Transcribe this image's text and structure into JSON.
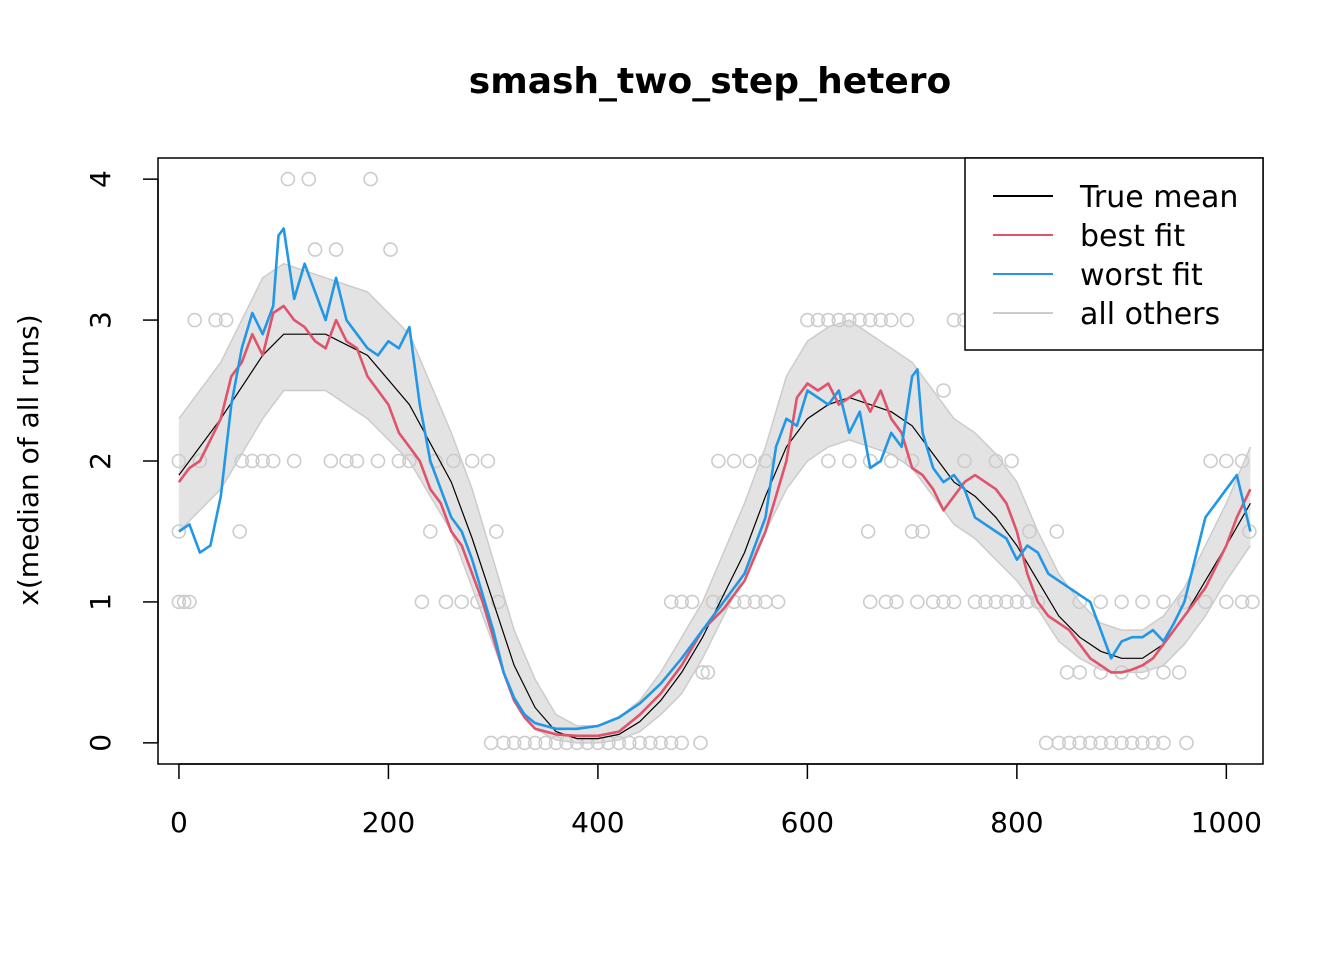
{
  "chart_data": {
    "type": "line",
    "title": "smash_two_step_hetero",
    "xlabel": "",
    "ylabel": "x(median of all runs)",
    "xlim": [
      -20,
      1035
    ],
    "ylim": [
      -0.15,
      4.15
    ],
    "x_ticks": [
      0,
      200,
      400,
      600,
      800,
      1000
    ],
    "y_ticks": [
      0,
      1,
      2,
      3,
      4
    ],
    "legend_position": "top-right",
    "legend": [
      {
        "label": "True mean",
        "color": "#000000"
      },
      {
        "label": "best fit",
        "color": "#DF536B"
      },
      {
        "label": "worst fit",
        "color": "#2297E6"
      },
      {
        "label": "all others",
        "color": "#CCCCCC"
      }
    ],
    "true_mean": {
      "color": "#000000",
      "x": [
        0,
        40,
        80,
        100,
        140,
        180,
        220,
        260,
        280,
        300,
        320,
        340,
        360,
        380,
        400,
        420,
        440,
        460,
        480,
        500,
        520,
        540,
        560,
        580,
        600,
        620,
        640,
        660,
        680,
        700,
        720,
        740,
        760,
        780,
        800,
        820,
        840,
        860,
        880,
        900,
        920,
        940,
        960,
        980,
        1000,
        1023
      ],
      "y": [
        1.9,
        2.3,
        2.75,
        2.9,
        2.9,
        2.75,
        2.4,
        1.85,
        1.45,
        1.0,
        0.55,
        0.25,
        0.08,
        0.03,
        0.03,
        0.06,
        0.15,
        0.3,
        0.5,
        0.75,
        1.05,
        1.35,
        1.75,
        2.1,
        2.3,
        2.4,
        2.45,
        2.4,
        2.35,
        2.25,
        2.05,
        1.85,
        1.75,
        1.6,
        1.4,
        1.15,
        0.9,
        0.75,
        0.65,
        0.6,
        0.6,
        0.7,
        0.9,
        1.15,
        1.4,
        1.7
      ]
    },
    "series": [
      {
        "name": "best fit",
        "color": "#DF536B",
        "x": [
          0,
          10,
          20,
          30,
          40,
          50,
          60,
          70,
          80,
          90,
          100,
          110,
          120,
          130,
          140,
          150,
          160,
          170,
          180,
          190,
          200,
          210,
          220,
          230,
          240,
          250,
          260,
          270,
          280,
          290,
          300,
          310,
          320,
          330,
          340,
          360,
          380,
          400,
          420,
          440,
          460,
          480,
          500,
          520,
          540,
          560,
          580,
          590,
          600,
          610,
          620,
          630,
          640,
          650,
          660,
          670,
          680,
          690,
          700,
          710,
          720,
          730,
          740,
          750,
          760,
          770,
          780,
          790,
          800,
          810,
          820,
          830,
          840,
          850,
          860,
          870,
          880,
          890,
          900,
          910,
          920,
          930,
          940,
          950,
          960,
          970,
          980,
          990,
          1000,
          1010,
          1023
        ],
        "y": [
          1.85,
          1.95,
          2.0,
          2.15,
          2.3,
          2.6,
          2.7,
          2.9,
          2.75,
          3.05,
          3.1,
          3.0,
          2.95,
          2.85,
          2.8,
          3.0,
          2.85,
          2.8,
          2.6,
          2.5,
          2.4,
          2.2,
          2.1,
          2.0,
          1.8,
          1.7,
          1.5,
          1.4,
          1.2,
          1.0,
          0.75,
          0.5,
          0.3,
          0.18,
          0.1,
          0.06,
          0.05,
          0.05,
          0.08,
          0.2,
          0.35,
          0.55,
          0.8,
          0.95,
          1.15,
          1.5,
          2.0,
          2.45,
          2.55,
          2.5,
          2.55,
          2.4,
          2.45,
          2.5,
          2.35,
          2.5,
          2.3,
          2.2,
          1.95,
          1.9,
          1.8,
          1.65,
          1.75,
          1.85,
          1.9,
          1.85,
          1.8,
          1.7,
          1.5,
          1.2,
          1.0,
          0.9,
          0.85,
          0.8,
          0.7,
          0.6,
          0.55,
          0.5,
          0.5,
          0.52,
          0.55,
          0.6,
          0.7,
          0.8,
          0.9,
          1.0,
          1.1,
          1.25,
          1.4,
          1.6,
          1.8
        ]
      },
      {
        "name": "worst fit",
        "color": "#2297E6",
        "x": [
          0,
          10,
          20,
          30,
          40,
          50,
          60,
          70,
          80,
          90,
          95,
          100,
          110,
          120,
          130,
          140,
          150,
          160,
          170,
          180,
          190,
          200,
          210,
          220,
          230,
          240,
          250,
          260,
          270,
          280,
          290,
          300,
          310,
          320,
          330,
          340,
          360,
          380,
          400,
          420,
          440,
          460,
          480,
          500,
          520,
          540,
          560,
          570,
          580,
          590,
          600,
          610,
          620,
          630,
          640,
          650,
          660,
          670,
          680,
          690,
          700,
          705,
          710,
          720,
          730,
          740,
          750,
          760,
          770,
          780,
          790,
          800,
          810,
          820,
          830,
          840,
          850,
          860,
          870,
          880,
          890,
          900,
          910,
          920,
          930,
          940,
          950,
          960,
          970,
          980,
          990,
          1000,
          1010,
          1023
        ],
        "y": [
          1.5,
          1.55,
          1.35,
          1.4,
          1.75,
          2.4,
          2.8,
          3.05,
          2.9,
          3.1,
          3.6,
          3.65,
          3.15,
          3.4,
          3.2,
          3.0,
          3.3,
          3.0,
          2.9,
          2.8,
          2.75,
          2.85,
          2.8,
          2.95,
          2.4,
          2.0,
          1.8,
          1.6,
          1.5,
          1.3,
          1.05,
          0.8,
          0.5,
          0.32,
          0.2,
          0.14,
          0.1,
          0.1,
          0.12,
          0.18,
          0.28,
          0.42,
          0.6,
          0.8,
          1.0,
          1.2,
          1.6,
          2.1,
          2.3,
          2.25,
          2.5,
          2.45,
          2.4,
          2.5,
          2.2,
          2.35,
          1.95,
          2.0,
          2.2,
          2.1,
          2.6,
          2.65,
          2.2,
          1.95,
          1.85,
          1.9,
          1.8,
          1.6,
          1.55,
          1.5,
          1.45,
          1.3,
          1.4,
          1.35,
          1.2,
          1.15,
          1.1,
          1.05,
          1.0,
          0.8,
          0.6,
          0.72,
          0.75,
          0.75,
          0.8,
          0.72,
          0.85,
          1.0,
          1.3,
          1.6,
          1.7,
          1.8,
          1.9,
          1.5
        ]
      }
    ],
    "all_others_band": {
      "color": "#CCCCCC",
      "x": [
        0,
        40,
        80,
        100,
        140,
        180,
        220,
        260,
        280,
        300,
        320,
        340,
        360,
        380,
        400,
        420,
        440,
        460,
        480,
        500,
        520,
        540,
        560,
        580,
        600,
        620,
        640,
        660,
        680,
        700,
        720,
        740,
        760,
        780,
        800,
        820,
        840,
        860,
        880,
        900,
        920,
        940,
        960,
        980,
        1000,
        1023
      ],
      "y_low": [
        1.5,
        1.8,
        2.3,
        2.5,
        2.5,
        2.3,
        2.0,
        1.5,
        1.1,
        0.7,
        0.3,
        0.1,
        0.02,
        0.0,
        0.0,
        0.02,
        0.08,
        0.2,
        0.35,
        0.6,
        0.9,
        1.2,
        1.5,
        1.8,
        2.0,
        2.1,
        2.15,
        2.1,
        2.05,
        1.95,
        1.75,
        1.55,
        1.45,
        1.3,
        1.15,
        0.95,
        0.72,
        0.6,
        0.52,
        0.5,
        0.5,
        0.55,
        0.7,
        0.9,
        1.15,
        1.4
      ],
      "y_high": [
        2.3,
        2.7,
        3.3,
        3.4,
        3.3,
        3.2,
        2.9,
        2.2,
        1.8,
        1.3,
        0.8,
        0.45,
        0.2,
        0.12,
        0.12,
        0.18,
        0.3,
        0.5,
        0.75,
        1.0,
        1.35,
        1.7,
        2.1,
        2.6,
        2.85,
        2.95,
        3.0,
        2.9,
        2.8,
        2.7,
        2.5,
        2.3,
        2.2,
        2.05,
        1.85,
        1.5,
        1.2,
        1.0,
        0.85,
        0.8,
        0.8,
        0.9,
        1.1,
        1.4,
        1.7,
        2.1
      ]
    },
    "all_others_points": [
      {
        "x": 0,
        "y": 2.0
      },
      {
        "x": 0,
        "y": 1.5
      },
      {
        "x": 0,
        "y": 1.0
      },
      {
        "x": 5,
        "y": 1.0
      },
      {
        "x": 10,
        "y": 1.0
      },
      {
        "x": 15,
        "y": 3.0
      },
      {
        "x": 20,
        "y": 2.0
      },
      {
        "x": 35,
        "y": 3.0
      },
      {
        "x": 45,
        "y": 3.0
      },
      {
        "x": 58,
        "y": 1.5
      },
      {
        "x": 60,
        "y": 2.0
      },
      {
        "x": 70,
        "y": 2.0
      },
      {
        "x": 80,
        "y": 2.0
      },
      {
        "x": 90,
        "y": 2.0
      },
      {
        "x": 104,
        "y": 4.0
      },
      {
        "x": 110,
        "y": 2.0
      },
      {
        "x": 124,
        "y": 4.0
      },
      {
        "x": 130,
        "y": 3.5
      },
      {
        "x": 145,
        "y": 2.0
      },
      {
        "x": 150,
        "y": 3.5
      },
      {
        "x": 160,
        "y": 2.0
      },
      {
        "x": 170,
        "y": 2.0
      },
      {
        "x": 183,
        "y": 4.0
      },
      {
        "x": 190,
        "y": 2.0
      },
      {
        "x": 202,
        "y": 3.5
      },
      {
        "x": 210,
        "y": 2.0
      },
      {
        "x": 220,
        "y": 2.0
      },
      {
        "x": 232,
        "y": 1.0
      },
      {
        "x": 240,
        "y": 1.5
      },
      {
        "x": 245,
        "y": 2.0
      },
      {
        "x": 255,
        "y": 1.0
      },
      {
        "x": 262,
        "y": 2.0
      },
      {
        "x": 270,
        "y": 1.0
      },
      {
        "x": 280,
        "y": 2.0
      },
      {
        "x": 285,
        "y": 1.0
      },
      {
        "x": 295,
        "y": 2.0
      },
      {
        "x": 303,
        "y": 1.5
      },
      {
        "x": 305,
        "y": 1.0
      },
      {
        "x": 298,
        "y": 0.0
      },
      {
        "x": 310,
        "y": 0.0
      },
      {
        "x": 320,
        "y": 0.0
      },
      {
        "x": 330,
        "y": 0.0
      },
      {
        "x": 340,
        "y": 0.0
      },
      {
        "x": 350,
        "y": 0.0
      },
      {
        "x": 360,
        "y": 0.0
      },
      {
        "x": 370,
        "y": 0.0
      },
      {
        "x": 380,
        "y": 0.0
      },
      {
        "x": 390,
        "y": 0.0
      },
      {
        "x": 400,
        "y": 0.0
      },
      {
        "x": 410,
        "y": 0.0
      },
      {
        "x": 420,
        "y": 0.0
      },
      {
        "x": 430,
        "y": 0.0
      },
      {
        "x": 440,
        "y": 0.0
      },
      {
        "x": 450,
        "y": 0.0
      },
      {
        "x": 460,
        "y": 0.0
      },
      {
        "x": 470,
        "y": 0.0
      },
      {
        "x": 480,
        "y": 0.0
      },
      {
        "x": 498,
        "y": 0.0
      },
      {
        "x": 470,
        "y": 1.0
      },
      {
        "x": 480,
        "y": 1.0
      },
      {
        "x": 490,
        "y": 1.0
      },
      {
        "x": 500,
        "y": 0.5
      },
      {
        "x": 505,
        "y": 0.5
      },
      {
        "x": 510,
        "y": 1.0
      },
      {
        "x": 520,
        "y": 1.0
      },
      {
        "x": 530,
        "y": 1.0
      },
      {
        "x": 540,
        "y": 1.0
      },
      {
        "x": 550,
        "y": 1.0
      },
      {
        "x": 560,
        "y": 1.0
      },
      {
        "x": 572,
        "y": 1.0
      },
      {
        "x": 515,
        "y": 2.0
      },
      {
        "x": 530,
        "y": 2.0
      },
      {
        "x": 545,
        "y": 2.0
      },
      {
        "x": 560,
        "y": 2.0
      },
      {
        "x": 600,
        "y": 3.0
      },
      {
        "x": 610,
        "y": 3.0
      },
      {
        "x": 620,
        "y": 3.0
      },
      {
        "x": 630,
        "y": 3.0
      },
      {
        "x": 640,
        "y": 3.0
      },
      {
        "x": 650,
        "y": 3.0
      },
      {
        "x": 660,
        "y": 3.0
      },
      {
        "x": 670,
        "y": 3.0
      },
      {
        "x": 680,
        "y": 3.0
      },
      {
        "x": 695,
        "y": 3.0
      },
      {
        "x": 620,
        "y": 2.0
      },
      {
        "x": 640,
        "y": 2.0
      },
      {
        "x": 660,
        "y": 2.0
      },
      {
        "x": 680,
        "y": 2.0
      },
      {
        "x": 700,
        "y": 2.0
      },
      {
        "x": 658,
        "y": 1.5
      },
      {
        "x": 660,
        "y": 1.0
      },
      {
        "x": 675,
        "y": 1.0
      },
      {
        "x": 685,
        "y": 1.0
      },
      {
        "x": 700,
        "y": 1.5
      },
      {
        "x": 705,
        "y": 1.0
      },
      {
        "x": 710,
        "y": 1.5
      },
      {
        "x": 720,
        "y": 1.0
      },
      {
        "x": 730,
        "y": 1.0
      },
      {
        "x": 730,
        "y": 2.5
      },
      {
        "x": 740,
        "y": 3.0
      },
      {
        "x": 750,
        "y": 3.0
      },
      {
        "x": 740,
        "y": 1.0
      },
      {
        "x": 750,
        "y": 2.0
      },
      {
        "x": 760,
        "y": 1.0
      },
      {
        "x": 770,
        "y": 1.0
      },
      {
        "x": 780,
        "y": 1.0
      },
      {
        "x": 790,
        "y": 1.0
      },
      {
        "x": 800,
        "y": 1.0
      },
      {
        "x": 780,
        "y": 2.0
      },
      {
        "x": 795,
        "y": 2.0
      },
      {
        "x": 810,
        "y": 1.0
      },
      {
        "x": 812,
        "y": 1.5
      },
      {
        "x": 820,
        "y": 1.0
      },
      {
        "x": 828,
        "y": 0.0
      },
      {
        "x": 838,
        "y": 1.5
      },
      {
        "x": 840,
        "y": 0.0
      },
      {
        "x": 848,
        "y": 0.5
      },
      {
        "x": 850,
        "y": 0.0
      },
      {
        "x": 860,
        "y": 0.0
      },
      {
        "x": 870,
        "y": 0.0
      },
      {
        "x": 880,
        "y": 0.0
      },
      {
        "x": 890,
        "y": 0.0
      },
      {
        "x": 900,
        "y": 0.0
      },
      {
        "x": 910,
        "y": 0.0
      },
      {
        "x": 920,
        "y": 0.0
      },
      {
        "x": 930,
        "y": 0.0
      },
      {
        "x": 940,
        "y": 0.0
      },
      {
        "x": 962,
        "y": 0.0
      },
      {
        "x": 860,
        "y": 0.5
      },
      {
        "x": 880,
        "y": 0.5
      },
      {
        "x": 900,
        "y": 0.5
      },
      {
        "x": 920,
        "y": 0.5
      },
      {
        "x": 940,
        "y": 0.5
      },
      {
        "x": 955,
        "y": 0.5
      },
      {
        "x": 860,
        "y": 1.0
      },
      {
        "x": 880,
        "y": 1.0
      },
      {
        "x": 900,
        "y": 1.0
      },
      {
        "x": 920,
        "y": 1.0
      },
      {
        "x": 940,
        "y": 1.0
      },
      {
        "x": 960,
        "y": 1.0
      },
      {
        "x": 980,
        "y": 1.0
      },
      {
        "x": 1000,
        "y": 1.0
      },
      {
        "x": 1015,
        "y": 1.0
      },
      {
        "x": 1025,
        "y": 1.0
      },
      {
        "x": 985,
        "y": 2.0
      },
      {
        "x": 1000,
        "y": 2.0
      },
      {
        "x": 1015,
        "y": 2.0
      },
      {
        "x": 1022,
        "y": 1.5
      }
    ]
  }
}
